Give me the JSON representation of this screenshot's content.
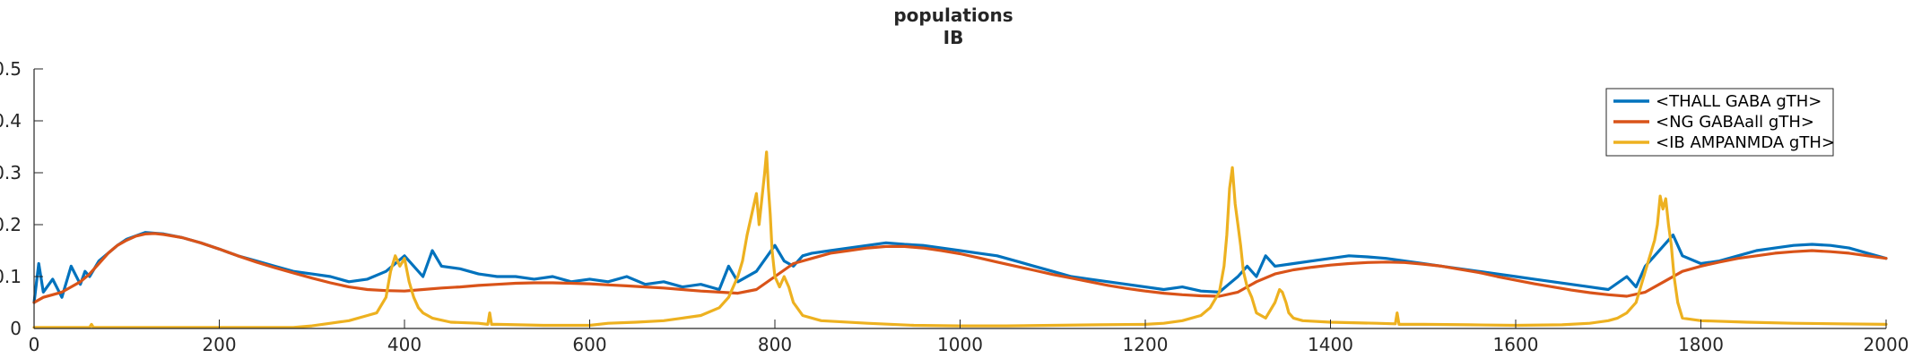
{
  "chart_data": {
    "type": "line",
    "title": [
      "populations",
      "IB"
    ],
    "xlabel": "",
    "ylabel": "",
    "xlim": [
      0,
      2000
    ],
    "ylim": [
      0,
      0.5
    ],
    "xticks": [
      0,
      200,
      400,
      600,
      800,
      1000,
      1200,
      1400,
      1600,
      1800,
      2000
    ],
    "xtick_labels": [
      "0",
      "200",
      "400",
      "600",
      "800",
      "1000",
      "1200",
      "1400",
      "1600",
      "1800",
      "2000"
    ],
    "yticks": [
      0,
      0.1,
      0.2,
      0.3,
      0.4,
      0.5
    ],
    "ytick_labels": [
      "0",
      "0.1",
      "0.2",
      "0.3",
      "0.4",
      "0.5"
    ],
    "grid": false,
    "legend_position": "top-right",
    "series": [
      {
        "name": "<THALL GABA gTH>",
        "color": "#0072BD",
        "x": [
          0,
          5,
          10,
          20,
          30,
          40,
          50,
          55,
          60,
          70,
          80,
          90,
          100,
          120,
          140,
          160,
          180,
          200,
          220,
          240,
          260,
          280,
          300,
          320,
          340,
          360,
          380,
          400,
          420,
          430,
          440,
          460,
          480,
          500,
          520,
          540,
          560,
          580,
          600,
          620,
          640,
          660,
          680,
          700,
          720,
          740,
          750,
          760,
          780,
          800,
          810,
          820,
          830,
          840,
          860,
          880,
          900,
          920,
          940,
          960,
          980,
          1000,
          1020,
          1040,
          1060,
          1080,
          1100,
          1120,
          1140,
          1160,
          1180,
          1200,
          1220,
          1240,
          1260,
          1280,
          1290,
          1300,
          1310,
          1320,
          1330,
          1340,
          1360,
          1380,
          1400,
          1420,
          1440,
          1460,
          1480,
          1500,
          1520,
          1540,
          1560,
          1580,
          1600,
          1620,
          1640,
          1660,
          1680,
          1700,
          1720,
          1730,
          1740,
          1750,
          1760,
          1770,
          1780,
          1800,
          1820,
          1840,
          1860,
          1880,
          1900,
          1920,
          1940,
          1960,
          1980,
          2000
        ],
        "y": [
          0.05,
          0.125,
          0.07,
          0.095,
          0.06,
          0.12,
          0.085,
          0.11,
          0.1,
          0.13,
          0.145,
          0.16,
          0.172,
          0.185,
          0.182,
          0.175,
          0.165,
          0.153,
          0.14,
          0.13,
          0.12,
          0.11,
          0.105,
          0.1,
          0.09,
          0.095,
          0.11,
          0.14,
          0.1,
          0.15,
          0.12,
          0.115,
          0.105,
          0.1,
          0.1,
          0.095,
          0.1,
          0.09,
          0.095,
          0.09,
          0.1,
          0.085,
          0.09,
          0.08,
          0.085,
          0.075,
          0.12,
          0.09,
          0.11,
          0.16,
          0.13,
          0.12,
          0.14,
          0.145,
          0.15,
          0.155,
          0.16,
          0.165,
          0.162,
          0.16,
          0.155,
          0.15,
          0.145,
          0.14,
          0.13,
          0.12,
          0.11,
          0.1,
          0.095,
          0.09,
          0.085,
          0.08,
          0.075,
          0.08,
          0.072,
          0.07,
          0.085,
          0.1,
          0.12,
          0.1,
          0.14,
          0.12,
          0.125,
          0.13,
          0.135,
          0.14,
          0.138,
          0.135,
          0.13,
          0.125,
          0.12,
          0.115,
          0.11,
          0.105,
          0.1,
          0.095,
          0.09,
          0.085,
          0.08,
          0.075,
          0.1,
          0.08,
          0.12,
          0.14,
          0.16,
          0.18,
          0.14,
          0.125,
          0.13,
          0.14,
          0.15,
          0.155,
          0.16,
          0.162,
          0.16,
          0.155,
          0.145,
          0.135
        ]
      },
      {
        "name": "<NG GABAall gTH>",
        "color": "#D95319",
        "x": [
          0,
          10,
          20,
          30,
          40,
          50,
          60,
          70,
          80,
          90,
          100,
          110,
          120,
          130,
          140,
          160,
          180,
          200,
          220,
          240,
          260,
          280,
          300,
          320,
          340,
          360,
          380,
          400,
          420,
          440,
          460,
          480,
          500,
          520,
          540,
          560,
          580,
          600,
          620,
          640,
          660,
          680,
          700,
          720,
          740,
          760,
          780,
          800,
          820,
          840,
          860,
          880,
          900,
          920,
          940,
          960,
          980,
          1000,
          1020,
          1040,
          1060,
          1080,
          1100,
          1120,
          1140,
          1160,
          1180,
          1200,
          1220,
          1240,
          1260,
          1280,
          1300,
          1320,
          1340,
          1360,
          1380,
          1400,
          1420,
          1440,
          1460,
          1480,
          1500,
          1520,
          1540,
          1560,
          1580,
          1600,
          1620,
          1640,
          1660,
          1680,
          1700,
          1720,
          1740,
          1760,
          1780,
          1800,
          1820,
          1840,
          1860,
          1880,
          1900,
          1920,
          1940,
          1960,
          1980,
          2000
        ],
        "y": [
          0.05,
          0.06,
          0.065,
          0.07,
          0.08,
          0.09,
          0.105,
          0.125,
          0.145,
          0.16,
          0.17,
          0.178,
          0.182,
          0.183,
          0.181,
          0.175,
          0.165,
          0.153,
          0.14,
          0.128,
          0.117,
          0.107,
          0.097,
          0.088,
          0.08,
          0.075,
          0.073,
          0.072,
          0.075,
          0.078,
          0.08,
          0.083,
          0.085,
          0.087,
          0.088,
          0.088,
          0.087,
          0.086,
          0.084,
          0.082,
          0.08,
          0.078,
          0.075,
          0.072,
          0.07,
          0.068,
          0.075,
          0.1,
          0.125,
          0.135,
          0.145,
          0.15,
          0.155,
          0.158,
          0.158,
          0.155,
          0.15,
          0.144,
          0.136,
          0.128,
          0.12,
          0.112,
          0.104,
          0.097,
          0.09,
          0.083,
          0.077,
          0.072,
          0.068,
          0.065,
          0.063,
          0.062,
          0.07,
          0.09,
          0.105,
          0.113,
          0.118,
          0.122,
          0.125,
          0.127,
          0.128,
          0.127,
          0.124,
          0.12,
          0.114,
          0.108,
          0.1,
          0.093,
          0.086,
          0.08,
          0.074,
          0.069,
          0.065,
          0.062,
          0.07,
          0.09,
          0.11,
          0.12,
          0.128,
          0.135,
          0.14,
          0.145,
          0.148,
          0.15,
          0.148,
          0.145,
          0.14,
          0.135
        ]
      },
      {
        "name": "<IB AMPANMDA gTH>",
        "color": "#EDB120",
        "x": [
          0,
          40,
          60,
          62,
          64,
          80,
          120,
          200,
          280,
          300,
          320,
          340,
          360,
          370,
          380,
          385,
          390,
          395,
          400,
          405,
          410,
          415,
          420,
          430,
          450,
          480,
          490,
          492,
          494,
          500,
          550,
          600,
          620,
          650,
          680,
          700,
          720,
          740,
          750,
          760,
          765,
          770,
          775,
          780,
          783,
          786,
          789,
          791,
          793,
          795,
          797,
          800,
          805,
          810,
          815,
          820,
          830,
          850,
          900,
          950,
          1000,
          1050,
          1100,
          1150,
          1200,
          1220,
          1240,
          1260,
          1270,
          1280,
          1285,
          1288,
          1291,
          1294,
          1297,
          1300,
          1303,
          1306,
          1310,
          1315,
          1320,
          1330,
          1340,
          1345,
          1348,
          1352,
          1355,
          1360,
          1370,
          1400,
          1450,
          1470,
          1472,
          1474,
          1500,
          1550,
          1600,
          1650,
          1680,
          1700,
          1710,
          1720,
          1730,
          1735,
          1740,
          1745,
          1750,
          1753,
          1756,
          1759,
          1762,
          1765,
          1768,
          1771,
          1775,
          1780,
          1800,
          1850,
          1900,
          1950,
          2000
        ],
        "y": [
          0.002,
          0.002,
          0.002,
          0.008,
          0.002,
          0.002,
          0.002,
          0.002,
          0.002,
          0.005,
          0.01,
          0.015,
          0.025,
          0.03,
          0.06,
          0.11,
          0.14,
          0.12,
          0.135,
          0.09,
          0.06,
          0.04,
          0.03,
          0.02,
          0.012,
          0.01,
          0.008,
          0.03,
          0.008,
          0.008,
          0.006,
          0.006,
          0.01,
          0.012,
          0.015,
          0.02,
          0.025,
          0.04,
          0.06,
          0.1,
          0.13,
          0.18,
          0.22,
          0.26,
          0.2,
          0.25,
          0.3,
          0.34,
          0.27,
          0.22,
          0.15,
          0.1,
          0.08,
          0.1,
          0.08,
          0.05,
          0.025,
          0.015,
          0.01,
          0.006,
          0.005,
          0.005,
          0.006,
          0.007,
          0.008,
          0.01,
          0.015,
          0.025,
          0.04,
          0.07,
          0.12,
          0.18,
          0.27,
          0.31,
          0.24,
          0.2,
          0.16,
          0.11,
          0.08,
          0.06,
          0.03,
          0.02,
          0.05,
          0.075,
          0.07,
          0.05,
          0.03,
          0.02,
          0.015,
          0.012,
          0.01,
          0.009,
          0.03,
          0.008,
          0.008,
          0.007,
          0.006,
          0.007,
          0.01,
          0.015,
          0.02,
          0.03,
          0.05,
          0.08,
          0.11,
          0.14,
          0.17,
          0.2,
          0.255,
          0.23,
          0.25,
          0.2,
          0.16,
          0.1,
          0.05,
          0.02,
          0.015,
          0.012,
          0.01,
          0.009,
          0.008
        ]
      }
    ]
  }
}
